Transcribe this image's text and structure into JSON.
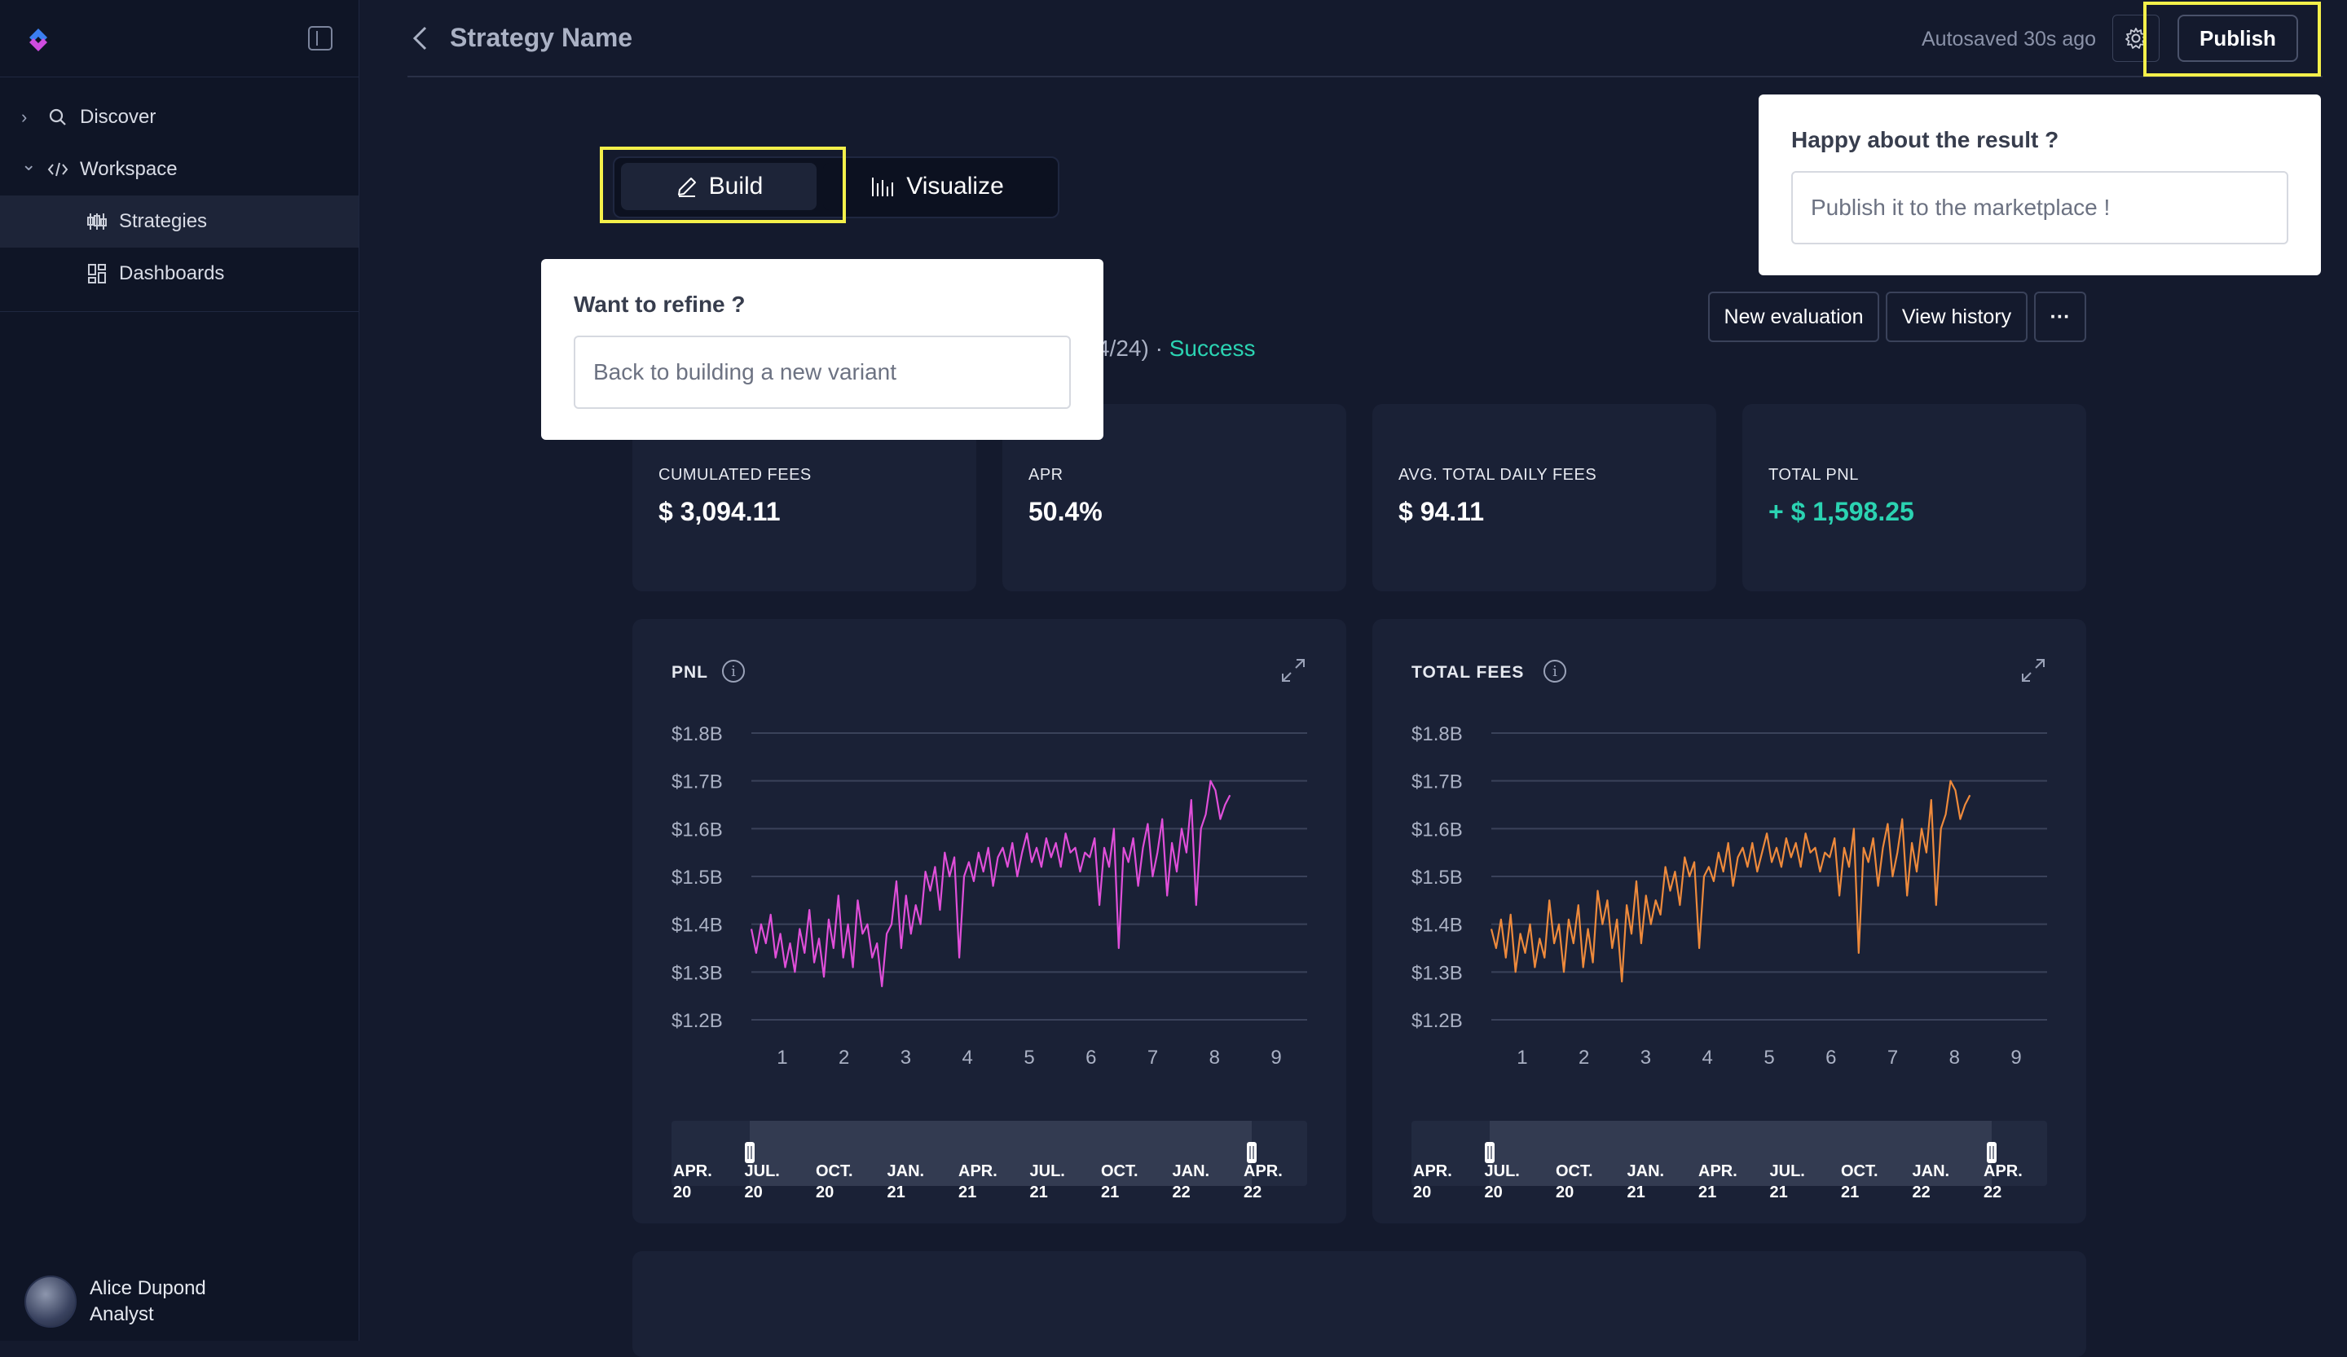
{
  "sidebar": {
    "items": [
      {
        "label": "Discover",
        "icon": "search-icon",
        "chevron": "›"
      },
      {
        "label": "Workspace",
        "icon": "code-icon",
        "chevron": "⌄"
      },
      {
        "label": "Strategies",
        "icon": "candlestick-icon"
      },
      {
        "label": "Dashboards",
        "icon": "dashboard-icon"
      }
    ],
    "user": {
      "name": "Alice Dupond",
      "role": "Analyst"
    }
  },
  "header": {
    "title": "Strategy Name",
    "autosave": "Autosaved 30s ago",
    "publish_label": "Publish"
  },
  "tabs": {
    "build": "Build",
    "visualize": "Visualize"
  },
  "popovers": {
    "publish": {
      "title": "Happy about the result ?",
      "input": "Publish it to the marketplace !"
    },
    "refine": {
      "title": "Want to refine ?",
      "input": "Back to building a new variant"
    }
  },
  "evaluation": {
    "meta": "4/24) · ",
    "status": "Success"
  },
  "actions": {
    "new_eval": "New evaluation",
    "history": "View history",
    "more": "···"
  },
  "stats": [
    {
      "label": "CUMULATED FEES",
      "value": "$ 3,094.11"
    },
    {
      "label": "APR",
      "value": "50.4%"
    },
    {
      "label": "AVG. TOTAL DAILY FEES",
      "value": "$ 94.11"
    },
    {
      "label": "TOTAL PNL",
      "value": "+ $ 1,598.25"
    }
  ],
  "colors": {
    "accent_pos": "#2bd3b2",
    "pnl_line": "#e04fd9",
    "fees_line": "#ee8a3c",
    "highlight": "#f4f04a"
  },
  "chart_data": [
    {
      "type": "line",
      "title": "PNL",
      "ylim": [
        1.2,
        1.8
      ],
      "y_ticks": [
        "$1.8B",
        "$1.7B",
        "$1.6B",
        "$1.5B",
        "$1.4B",
        "$1.3B",
        "$1.2B"
      ],
      "x_ticks": [
        "1",
        "2",
        "3",
        "4",
        "5",
        "6",
        "7",
        "8",
        "9"
      ],
      "xlim": [
        0.5,
        9.5
      ],
      "series": [
        {
          "values": [
            1.39,
            1.34,
            1.4,
            1.36,
            1.42,
            1.33,
            1.38,
            1.31,
            1.36,
            1.3,
            1.39,
            1.34,
            1.43,
            1.32,
            1.37,
            1.29,
            1.41,
            1.35,
            1.46,
            1.33,
            1.4,
            1.31,
            1.45,
            1.38,
            1.4,
            1.33,
            1.36,
            1.27,
            1.38,
            1.4,
            1.49,
            1.35,
            1.46,
            1.38,
            1.44,
            1.4,
            1.51,
            1.47,
            1.52,
            1.43,
            1.55,
            1.5,
            1.54,
            1.33,
            1.5,
            1.53,
            1.49,
            1.55,
            1.51,
            1.56,
            1.48,
            1.54,
            1.56,
            1.52,
            1.57,
            1.5,
            1.55,
            1.59,
            1.53,
            1.56,
            1.52,
            1.58,
            1.54,
            1.57,
            1.52,
            1.59,
            1.55,
            1.56,
            1.51,
            1.55,
            1.54,
            1.58,
            1.44,
            1.56,
            1.52,
            1.6,
            1.35,
            1.56,
            1.53,
            1.58,
            1.48,
            1.56,
            1.61,
            1.5,
            1.55,
            1.62,
            1.46,
            1.57,
            1.51,
            1.6,
            1.55,
            1.66,
            1.44,
            1.6,
            1.63,
            1.7,
            1.68,
            1.62,
            1.65,
            1.67
          ]
        }
      ],
      "range_labels": [
        "APR. 20",
        "JUL. 20",
        "OCT. 20",
        "JAN. 21",
        "APR. 21",
        "JUL. 21",
        "OCT. 21",
        "JAN. 22",
        "APR. 22"
      ]
    },
    {
      "type": "line",
      "title": "TOTAL FEES",
      "ylim": [
        1.2,
        1.8
      ],
      "y_ticks": [
        "$1.8B",
        "$1.7B",
        "$1.6B",
        "$1.5B",
        "$1.4B",
        "$1.3B",
        "$1.2B"
      ],
      "x_ticks": [
        "1",
        "2",
        "3",
        "4",
        "5",
        "6",
        "7",
        "8",
        "9"
      ],
      "xlim": [
        0.5,
        9.5
      ],
      "series": [
        {
          "values": [
            1.39,
            1.35,
            1.41,
            1.33,
            1.42,
            1.3,
            1.38,
            1.34,
            1.4,
            1.31,
            1.37,
            1.33,
            1.45,
            1.36,
            1.4,
            1.3,
            1.41,
            1.36,
            1.44,
            1.31,
            1.39,
            1.32,
            1.47,
            1.4,
            1.45,
            1.35,
            1.41,
            1.28,
            1.44,
            1.38,
            1.49,
            1.36,
            1.46,
            1.4,
            1.45,
            1.42,
            1.52,
            1.47,
            1.51,
            1.44,
            1.54,
            1.5,
            1.53,
            1.35,
            1.5,
            1.52,
            1.49,
            1.55,
            1.51,
            1.57,
            1.48,
            1.54,
            1.56,
            1.52,
            1.57,
            1.51,
            1.55,
            1.59,
            1.53,
            1.56,
            1.52,
            1.58,
            1.54,
            1.57,
            1.52,
            1.59,
            1.55,
            1.56,
            1.51,
            1.55,
            1.54,
            1.58,
            1.46,
            1.56,
            1.52,
            1.6,
            1.34,
            1.56,
            1.53,
            1.58,
            1.48,
            1.56,
            1.61,
            1.5,
            1.55,
            1.62,
            1.46,
            1.57,
            1.51,
            1.6,
            1.55,
            1.66,
            1.44,
            1.6,
            1.63,
            1.7,
            1.68,
            1.62,
            1.65,
            1.67
          ]
        }
      ],
      "range_labels": [
        "APR. 20",
        "JUL. 20",
        "OCT. 20",
        "JAN. 21",
        "APR. 21",
        "JUL. 21",
        "OCT. 21",
        "JAN. 22",
        "APR. 22"
      ]
    }
  ]
}
